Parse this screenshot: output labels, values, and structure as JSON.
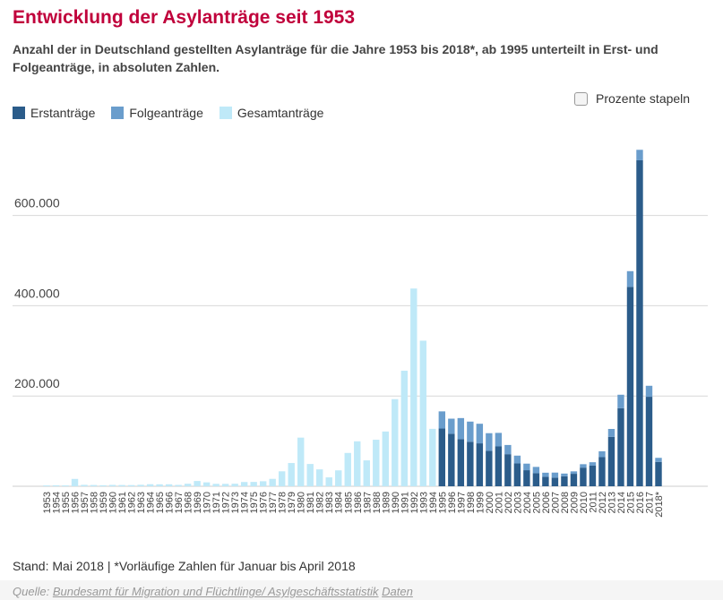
{
  "title": "Entwicklung der Asylanträge seit 1953",
  "subtitle": "Anzahl der in Deutschland gestellten Asylanträge für die Jahre 1953 bis 2018*, ab 1995 unterteilt in Erst- und Folgeanträge, in absoluten Zahlen.",
  "stack_toggle_label": "Prozente stapeln",
  "footnote": "Stand: Mai 2018 | *Vorläufige Zahlen für Januar bis April 2018",
  "source": {
    "prefix": "Quelle:",
    "link1": "Bundesamt für Migration und Flüchtlinge/ Asylgeschäftsstatistik",
    "link2": "Daten"
  },
  "colors": {
    "erst": "#2b5c8a",
    "folge": "#6a9dcc",
    "gesamt": "#bfe9f8",
    "title": "#c0003b",
    "grid": "#d8d8d8"
  },
  "legend": [
    {
      "label": "Erstanträge",
      "color": "#2b5c8a"
    },
    {
      "label": "Folgeanträge",
      "color": "#6a9dcc"
    },
    {
      "label": "Gesamtanträge",
      "color": "#bfe9f8"
    }
  ],
  "chart_data": {
    "type": "bar",
    "stacked": true,
    "ylim": [
      0,
      760000
    ],
    "yticks": [
      {
        "value": 200000,
        "label": "200.000"
      },
      {
        "value": 400000,
        "label": "400.000"
      },
      {
        "value": 600000,
        "label": "600.000"
      }
    ],
    "categories": [
      "1953",
      "1954",
      "1955",
      "1956",
      "1957",
      "1958",
      "1959",
      "1960",
      "1961",
      "1962",
      "1963",
      "1964",
      "1965",
      "1966",
      "1967",
      "1968",
      "1969",
      "1970",
      "1971",
      "1972",
      "1973",
      "1974",
      "1975",
      "1976",
      "1977",
      "1978",
      "1979",
      "1980",
      "1981",
      "1982",
      "1983",
      "1984",
      "1985",
      "1986",
      "1987",
      "1988",
      "1989",
      "1990",
      "1991",
      "1992",
      "1993",
      "1994",
      "1995",
      "1996",
      "1997",
      "1998",
      "1999",
      "2000",
      "2001",
      "2002",
      "2003",
      "2004",
      "2005",
      "2006",
      "2007",
      "2008",
      "2009",
      "2010",
      "2011",
      "2012",
      "2013",
      "2014",
      "2015",
      "2016",
      "2017",
      "2018*"
    ],
    "series": [
      {
        "name": "Gesamtanträge",
        "values": [
          1906,
          2174,
          1926,
          16284,
          3112,
          2785,
          2267,
          2980,
          2722,
          2550,
          3238,
          4542,
          4337,
          4370,
          2992,
          5608,
          11664,
          8645,
          5388,
          5289,
          5595,
          9424,
          9627,
          11123,
          16410,
          33136,
          51493,
          107818,
          49391,
          37423,
          19737,
          35278,
          73832,
          99650,
          57379,
          103076,
          121318,
          193063,
          256112,
          438191,
          322599,
          127210,
          0,
          0,
          0,
          0,
          0,
          0,
          0,
          0,
          0,
          0,
          0,
          0,
          0,
          0,
          0,
          0,
          0,
          0,
          0,
          0,
          0,
          0,
          0,
          0
        ]
      },
      {
        "name": "Erstanträge",
        "values": [
          0,
          0,
          0,
          0,
          0,
          0,
          0,
          0,
          0,
          0,
          0,
          0,
          0,
          0,
          0,
          0,
          0,
          0,
          0,
          0,
          0,
          0,
          0,
          0,
          0,
          0,
          0,
          0,
          0,
          0,
          0,
          0,
          0,
          0,
          0,
          0,
          0,
          0,
          0,
          0,
          0,
          0,
          127937,
          116367,
          104353,
          98644,
          95113,
          78564,
          88287,
          71127,
          50563,
          35607,
          28914,
          21029,
          19164,
          22085,
          27649,
          41332,
          45741,
          64539,
          109580,
          173072,
          441899,
          722370,
          198317,
          54000
        ]
      },
      {
        "name": "Folgeanträge",
        "values": [
          0,
          0,
          0,
          0,
          0,
          0,
          0,
          0,
          0,
          0,
          0,
          0,
          0,
          0,
          0,
          0,
          0,
          0,
          0,
          0,
          0,
          0,
          0,
          0,
          0,
          0,
          0,
          0,
          0,
          0,
          0,
          0,
          0,
          0,
          0,
          0,
          0,
          0,
          0,
          0,
          0,
          0,
          38014,
          33389,
          46753,
          44672,
          43443,
          39063,
          30019,
          20345,
          17350,
          14545,
          13994,
          9040,
          11139,
          6081,
          5384,
          7589,
          7545,
          13023,
          17443,
          29762,
          34750,
          23175,
          24373,
          9000
        ]
      }
    ]
  }
}
